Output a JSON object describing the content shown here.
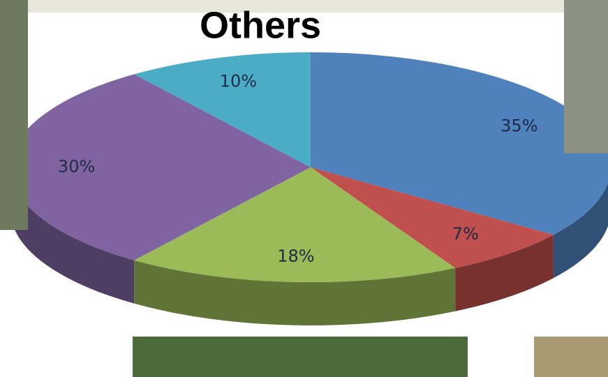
{
  "chart_data": {
    "type": "pie",
    "title": "Others",
    "categories": [
      null,
      null,
      null,
      null,
      null
    ],
    "values": [
      35,
      7,
      18,
      30,
      10
    ],
    "value_labels": [
      "35%",
      "7%",
      "18%",
      "30%",
      "10%"
    ],
    "colors": [
      "#4f81bd",
      "#c0504d",
      "#9bbb59",
      "#8064a2",
      "#4bacc6"
    ]
  }
}
